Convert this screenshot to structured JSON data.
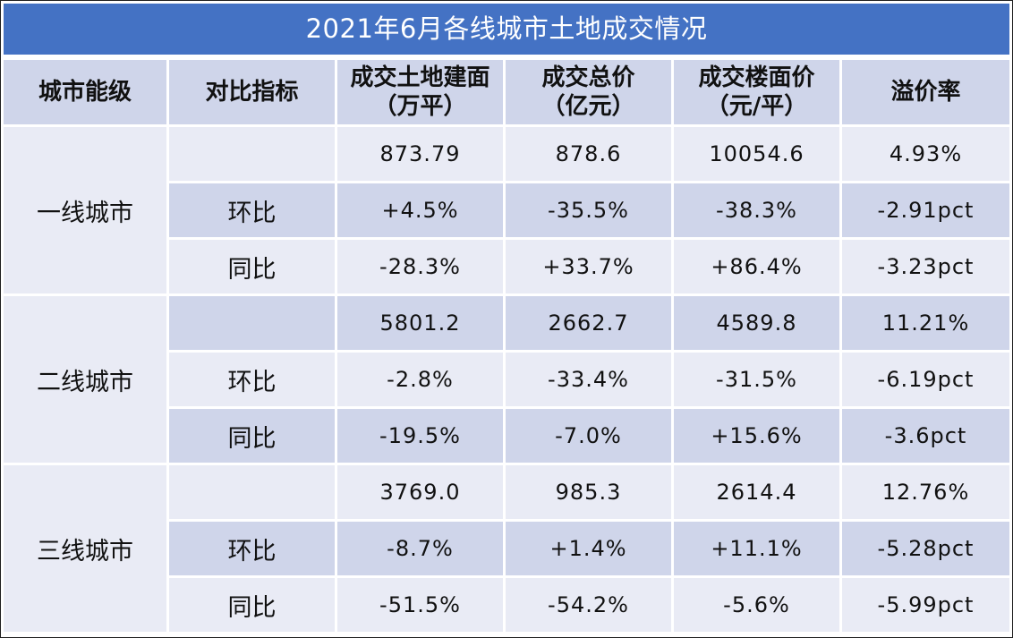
{
  "title": "2021年6月各线城市土地成交情况",
  "headers": [
    {
      "line1": "城市能级",
      "line2": ""
    },
    {
      "line1": "对比指标",
      "line2": ""
    },
    {
      "line1": "成交土地建面",
      "line2": "（万平）"
    },
    {
      "line1": "成交总价",
      "line2": "（亿元）"
    },
    {
      "line1": "成交楼面价",
      "line2": "（元/平）"
    },
    {
      "line1": "溢价率",
      "line2": ""
    }
  ],
  "tiers": [
    {
      "name": "一线城市",
      "rows": [
        {
          "metric": "",
          "area": "873.79",
          "total": "878.6",
          "price": "10054.6",
          "premium": "4.93%"
        },
        {
          "metric": "环比",
          "area": "+4.5%",
          "total": "-35.5%",
          "price": "-38.3%",
          "premium": "-2.91pct"
        },
        {
          "metric": "同比",
          "area": "-28.3%",
          "total": "+33.7%",
          "price": "+86.4%",
          "premium": "-3.23pct"
        }
      ]
    },
    {
      "name": "二线城市",
      "rows": [
        {
          "metric": "",
          "area": "5801.2",
          "total": "2662.7",
          "price": "4589.8",
          "premium": "11.21%"
        },
        {
          "metric": "环比",
          "area": "-2.8%",
          "total": "-33.4%",
          "price": "-31.5%",
          "premium": "-6.19pct"
        },
        {
          "metric": "同比",
          "area": "-19.5%",
          "total": "-7.0%",
          "price": "+15.6%",
          "premium": "-3.6pct"
        }
      ]
    },
    {
      "name": "三线城市",
      "rows": [
        {
          "metric": "",
          "area": "3769.0",
          "total": "985.3",
          "price": "2614.4",
          "premium": "12.76%"
        },
        {
          "metric": "环比",
          "area": "-8.7%",
          "total": "+1.4%",
          "price": "+11.1%",
          "premium": "-5.28pct"
        },
        {
          "metric": "同比",
          "area": "-51.5%",
          "total": "-54.2%",
          "price": "-5.6%",
          "premium": "-5.99pct"
        }
      ]
    }
  ],
  "colors": {
    "title_bg": "#4472c4",
    "header_bg": "#cfd5ea",
    "row_light": "#e9ebf5",
    "row_dark": "#cfd5ea"
  }
}
